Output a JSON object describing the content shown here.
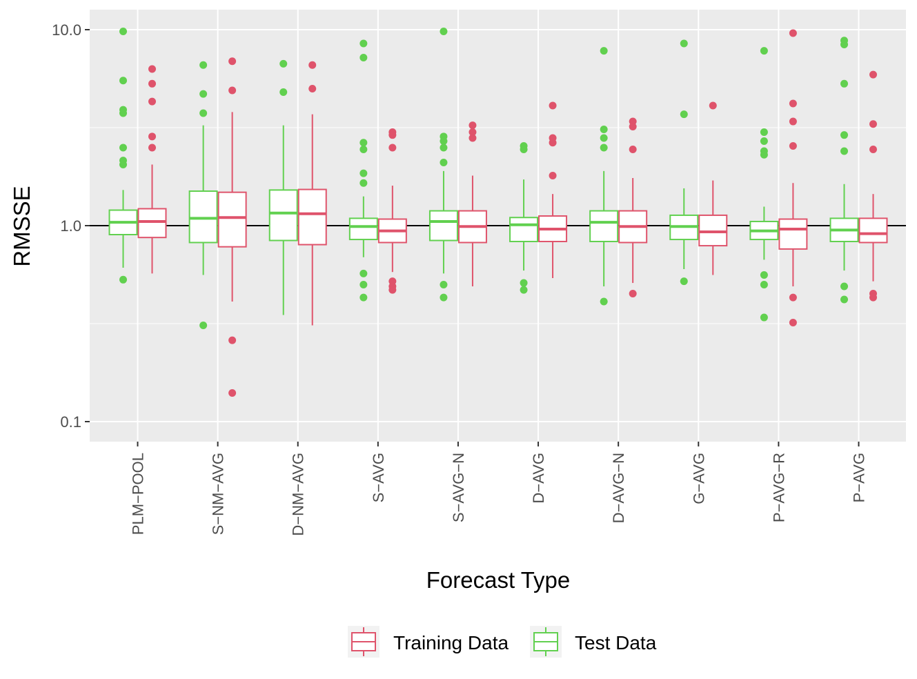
{
  "chart_data": {
    "type": "boxplot",
    "xlabel": "Forecast Type",
    "ylabel": "RMSSE",
    "y_scale": "log10",
    "ylim": [
      0.08,
      12.5
    ],
    "y_ticks": [
      {
        "value": 0.1,
        "label": "0.1"
      },
      {
        "value": 1.0,
        "label": "1.0"
      },
      {
        "value": 10.0,
        "label": "10.0"
      }
    ],
    "reference_line": 1.0,
    "categories": [
      "PLM−POOL",
      "S−NM−AVG",
      "D−NM−AVG",
      "S−AVG",
      "S−AVG−N",
      "D−AVG",
      "D−AVG−N",
      "G−AVG",
      "P−AVG−R",
      "P−AVG"
    ],
    "legend": {
      "position": "bottom",
      "items": [
        {
          "key": "training",
          "label": "Training Data"
        },
        {
          "key": "test",
          "label": "Test Data"
        }
      ]
    },
    "series": [
      {
        "key": "test",
        "name": "Test Data",
        "color": "#61D04F",
        "boxes": [
          {
            "min": 0.61,
            "q1": 0.9,
            "median": 1.04,
            "q3": 1.2,
            "max": 1.52,
            "outliers": [
              9.8,
              5.5,
              3.9,
              3.75,
              2.5,
              2.15,
              2.05,
              0.53
            ]
          },
          {
            "min": 0.56,
            "q1": 0.82,
            "median": 1.09,
            "q3": 1.5,
            "max": 3.25,
            "outliers": [
              6.6,
              4.7,
              3.75,
              0.31
            ]
          },
          {
            "min": 0.35,
            "q1": 0.84,
            "median": 1.16,
            "q3": 1.52,
            "max": 3.25,
            "outliers": [
              6.7,
              4.8
            ]
          },
          {
            "min": 0.69,
            "q1": 0.85,
            "median": 0.99,
            "q3": 1.09,
            "max": 1.41,
            "outliers": [
              8.5,
              7.2,
              2.65,
              2.45,
              1.85,
              1.65,
              0.57,
              0.5,
              0.43
            ]
          },
          {
            "min": 0.57,
            "q1": 0.84,
            "median": 1.05,
            "q3": 1.19,
            "max": 1.9,
            "outliers": [
              9.8,
              2.85,
              2.7,
              2.5,
              2.1,
              0.5,
              0.43
            ]
          },
          {
            "min": 0.59,
            "q1": 0.83,
            "median": 1.01,
            "q3": 1.1,
            "max": 1.72,
            "outliers": [
              2.55,
              2.45,
              0.51,
              0.47
            ]
          },
          {
            "min": 0.49,
            "q1": 0.83,
            "median": 1.04,
            "q3": 1.19,
            "max": 1.9,
            "outliers": [
              7.8,
              3.1,
              2.8,
              2.5,
              0.41
            ]
          },
          {
            "min": 0.6,
            "q1": 0.85,
            "median": 0.99,
            "q3": 1.13,
            "max": 1.55,
            "outliers": [
              8.5,
              3.7,
              0.52
            ]
          },
          {
            "min": 0.67,
            "q1": 0.85,
            "median": 0.94,
            "q3": 1.05,
            "max": 1.25,
            "outliers": [
              7.8,
              3.0,
              2.7,
              2.4,
              2.3,
              0.56,
              0.5,
              0.34
            ]
          },
          {
            "min": 0.59,
            "q1": 0.83,
            "median": 0.95,
            "q3": 1.09,
            "max": 1.63,
            "outliers": [
              8.8,
              8.4,
              5.3,
              2.9,
              2.4,
              0.49,
              0.42
            ]
          }
        ]
      },
      {
        "key": "training",
        "name": "Training Data",
        "color": "#DF536B",
        "boxes": [
          {
            "min": 0.57,
            "q1": 0.87,
            "median": 1.05,
            "q3": 1.22,
            "max": 2.05,
            "outliers": [
              6.3,
              5.3,
              4.3,
              2.85,
              2.5
            ]
          },
          {
            "min": 0.41,
            "q1": 0.78,
            "median": 1.1,
            "q3": 1.48,
            "max": 3.8,
            "outliers": [
              6.9,
              4.9,
              0.26,
              0.14
            ]
          },
          {
            "min": 0.31,
            "q1": 0.8,
            "median": 1.15,
            "q3": 1.53,
            "max": 3.7,
            "outliers": [
              6.6,
              5.0
            ]
          },
          {
            "min": 0.58,
            "q1": 0.82,
            "median": 0.94,
            "q3": 1.08,
            "max": 1.6,
            "outliers": [
              3.0,
              2.9,
              2.5,
              0.52,
              0.49,
              0.47
            ]
          },
          {
            "min": 0.49,
            "q1": 0.82,
            "median": 0.99,
            "q3": 1.19,
            "max": 1.8,
            "outliers": [
              3.25,
              3.0,
              2.8
            ]
          },
          {
            "min": 0.54,
            "q1": 0.83,
            "median": 0.96,
            "q3": 1.12,
            "max": 1.45,
            "outliers": [
              4.1,
              2.8,
              2.65,
              1.8
            ]
          },
          {
            "min": 0.51,
            "q1": 0.82,
            "median": 0.99,
            "q3": 1.19,
            "max": 1.75,
            "outliers": [
              3.4,
              3.2,
              2.45,
              0.45
            ]
          },
          {
            "min": 0.56,
            "q1": 0.79,
            "median": 0.93,
            "q3": 1.13,
            "max": 1.7,
            "outliers": [
              4.1
            ]
          },
          {
            "min": 0.49,
            "q1": 0.76,
            "median": 0.96,
            "q3": 1.08,
            "max": 1.65,
            "outliers": [
              9.6,
              4.2,
              3.4,
              2.55,
              0.43,
              0.32
            ]
          },
          {
            "min": 0.52,
            "q1": 0.82,
            "median": 0.91,
            "q3": 1.09,
            "max": 1.45,
            "outliers": [
              5.9,
              3.3,
              2.45,
              0.45,
              0.43
            ]
          }
        ]
      }
    ]
  }
}
